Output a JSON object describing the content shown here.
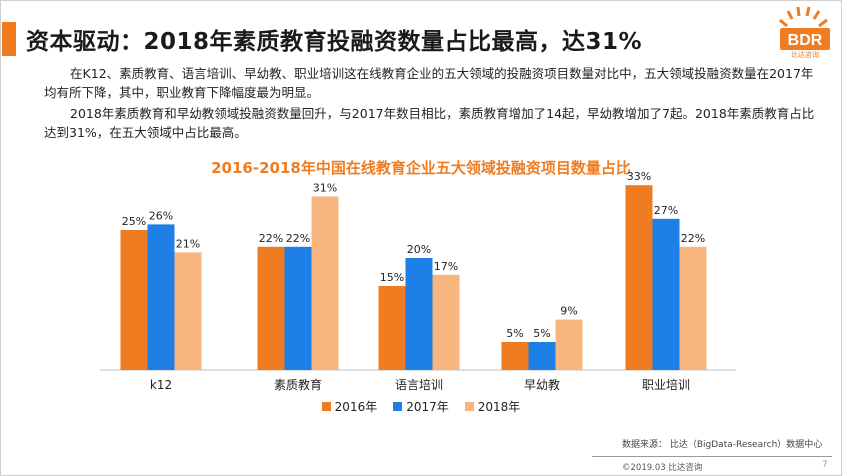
{
  "slide": {
    "title": "资本驱动：2018年素质教育投融资数量占比最高，达31%",
    "paragraph1": "在K12、素质教育、语言培训、早幼教、职业培训这在线教育企业的五大领域的投融资项目数量对比中，五大领域投融资数量在2017年均有所下降，其中，职业教育下降幅度最为明显。",
    "paragraph2": "2018年素质教育和早幼教领域投融资数量回升，与2017年数目相比，素质教育增加了14起，早幼教增加了7起。2018年素质教育占比达到31%，在五大领域中占比最高。",
    "source": "数据来源： 比达（BigData-Research）数据中心",
    "copyright": "©2019.03 比达咨询",
    "page_number": "7",
    "logo_text": "BDR",
    "logo_subtext": "比达咨询"
  },
  "colors": {
    "accent": "#f07c22",
    "series_2016": "#f07c22",
    "series_2017": "#1e7fe6",
    "series_2018": "#f8b57d"
  },
  "chart_data": {
    "type": "bar",
    "title": "2016-2018年中国在线教育企业五大领域投融资项目数量占比",
    "categories": [
      "k12",
      "素质教育",
      "语言培训",
      "早幼教",
      "职业培训"
    ],
    "series": [
      {
        "name": "2016年",
        "values": [
          25,
          22,
          15,
          5,
          33
        ]
      },
      {
        "name": "2017年",
        "values": [
          26,
          22,
          20,
          5,
          27
        ]
      },
      {
        "name": "2018年",
        "values": [
          21,
          31,
          17,
          9,
          22
        ]
      }
    ],
    "value_suffix": "%",
    "ylim": [
      0,
      35
    ],
    "legend_position": "bottom",
    "grid": false
  }
}
